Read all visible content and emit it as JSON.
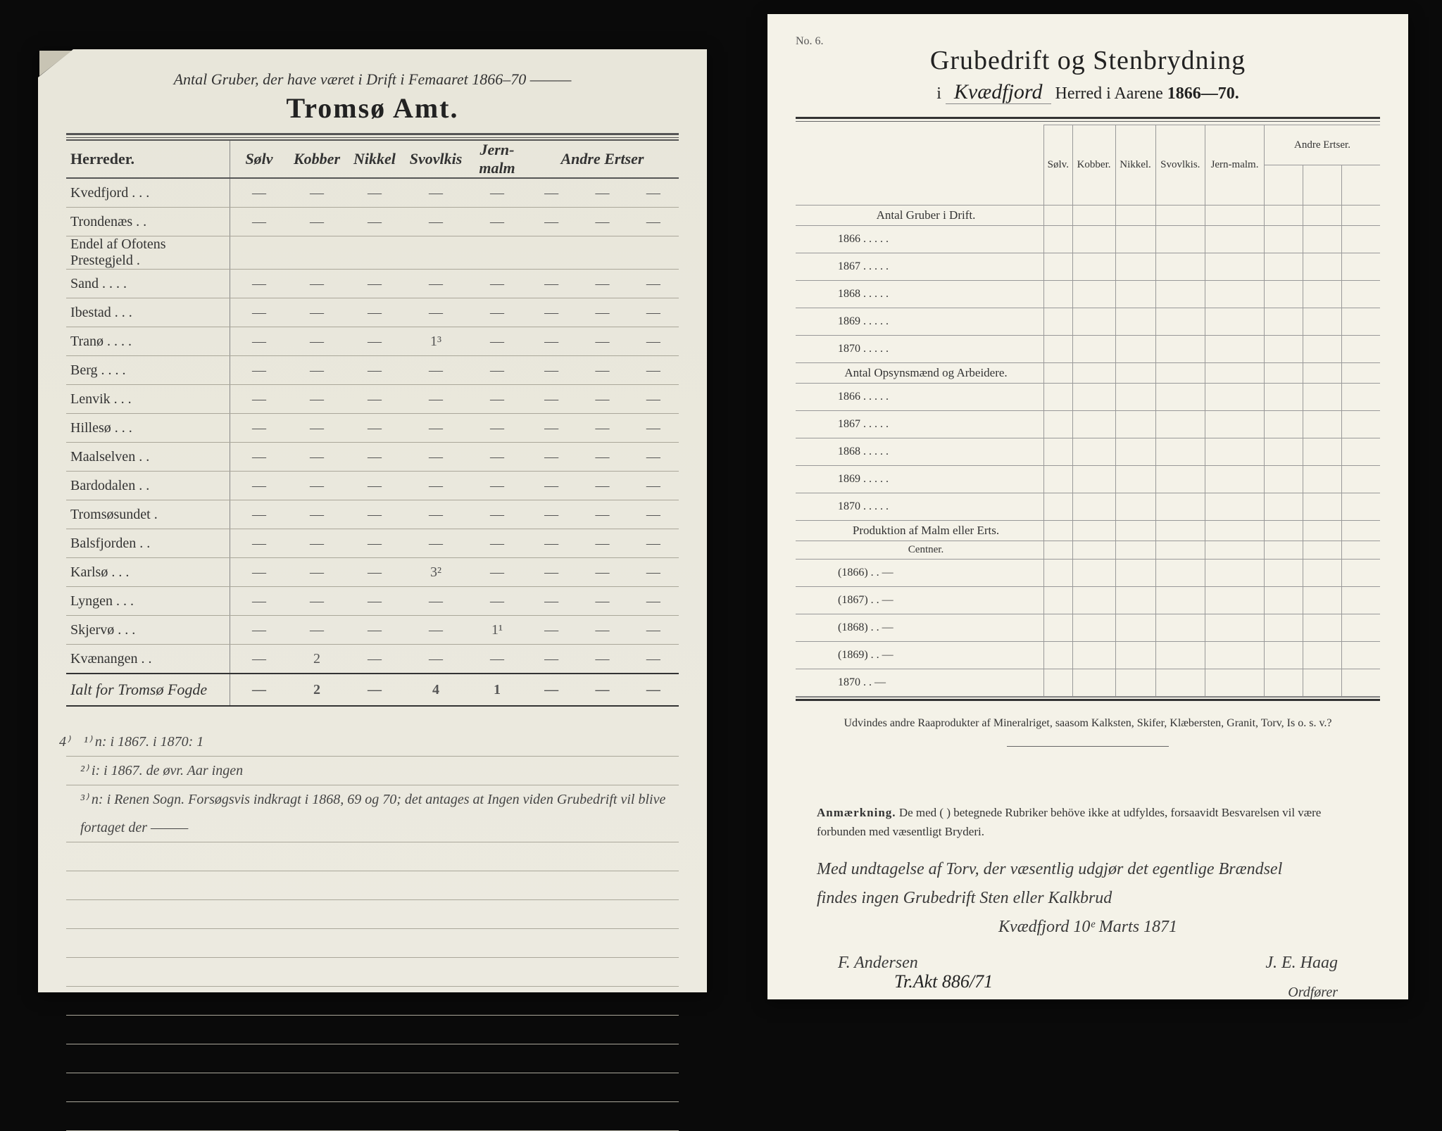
{
  "left": {
    "handwritten_header": "Antal Gruber, der have været i Drift i Femaaret 1866–70 ———",
    "title": "Tromsø Amt.",
    "col_header_main": "Herreder.",
    "col_headers_hw": [
      "Sølv",
      "Kobber",
      "Nikkel",
      "Svovlkis",
      "Jern-malm",
      "Andre Ertser",
      "",
      ""
    ],
    "rows": [
      {
        "name": "Kvedfjord . . .",
        "cells": [
          "—",
          "—",
          "—",
          "—",
          "—",
          "—",
          "—",
          "—"
        ]
      },
      {
        "name": "Trondenæs . .",
        "cells": [
          "—",
          "—",
          "—",
          "—",
          "—",
          "—",
          "—",
          "—"
        ]
      },
      {
        "name": "Endel af Ofotens Prestegjeld .",
        "cells": [
          "",
          "",
          "",
          "",
          "",
          "",
          "",
          ""
        ]
      },
      {
        "name": "Sand . . . .",
        "cells": [
          "—",
          "—",
          "—",
          "—",
          "—",
          "—",
          "—",
          "—"
        ]
      },
      {
        "name": "Ibestad . . .",
        "cells": [
          "—",
          "—",
          "—",
          "—",
          "—",
          "—",
          "—",
          "—"
        ]
      },
      {
        "name": "Tranø . . . .",
        "cells": [
          "—",
          "—",
          "—",
          "1³",
          "—",
          "—",
          "—",
          "—"
        ]
      },
      {
        "name": "Berg . . . .",
        "cells": [
          "—",
          "—",
          "—",
          "—",
          "—",
          "—",
          "—",
          "—"
        ]
      },
      {
        "name": "Lenvik . . .",
        "cells": [
          "—",
          "—",
          "—",
          "—",
          "—",
          "—",
          "—",
          "—"
        ]
      },
      {
        "name": "Hillesø . . .",
        "cells": [
          "—",
          "—",
          "—",
          "—",
          "—",
          "—",
          "—",
          "—"
        ]
      },
      {
        "name": "Maalselven . .",
        "cells": [
          "—",
          "—",
          "—",
          "—",
          "—",
          "—",
          "—",
          "—"
        ]
      },
      {
        "name": "Bardodalen . .",
        "cells": [
          "—",
          "—",
          "—",
          "—",
          "—",
          "—",
          "—",
          "—"
        ]
      },
      {
        "name": "Tromsøsundet .",
        "cells": [
          "—",
          "—",
          "—",
          "—",
          "—",
          "—",
          "—",
          "—"
        ]
      },
      {
        "name": "Balsfjorden . .",
        "cells": [
          "—",
          "—",
          "—",
          "—",
          "—",
          "—",
          "—",
          "—"
        ]
      },
      {
        "name": "Karlsø . . .",
        "cells": [
          "—",
          "—",
          "—",
          "3²",
          "—",
          "—",
          "—",
          "—"
        ]
      },
      {
        "name": "Lyngen . . .",
        "cells": [
          "—",
          "—",
          "—",
          "—",
          "—",
          "—",
          "—",
          "—"
        ]
      },
      {
        "name": "Skjervø . . .",
        "cells": [
          "—",
          "—",
          "—",
          "—",
          "1¹",
          "—",
          "—",
          "—"
        ]
      },
      {
        "name": "Kvænangen . .",
        "cells": [
          "—",
          "2",
          "—",
          "—",
          "—",
          "—",
          "—",
          "—"
        ]
      }
    ],
    "sum_row": {
      "name": "Ialt for Tromsø Fogde",
      "cells": [
        "—",
        "2",
        "—",
        "4",
        "1",
        "—",
        "—",
        "—"
      ]
    },
    "notes": [
      "¹⁾ n: i 1867.  i 1870: 1",
      "²⁾ i: i 1867.  de øvr. Aar ingen",
      "³⁾ n: i Renen Sogn. Forsøgsvis indkragt i 1868, 69 og 70; det antages at Ingen viden Grubedrift vil blive fortaget der ———"
    ],
    "footnote_sup": "4⁾",
    "colors": {
      "paper": "#eceae0",
      "rule": "#9a9688",
      "ink": "#333333"
    }
  },
  "right": {
    "form_no": "No. 6.",
    "title": "Grubedrift og Stenbrydning",
    "subtitle_prefix": "i",
    "subtitle_hw": "Kvædfjord",
    "subtitle_rest": "Herred i Aarene",
    "subtitle_years": "1866—70.",
    "columns": [
      "Sølv.",
      "Kobber.",
      "Nikkel.",
      "Svovlkis.",
      "Jern-malm.",
      "Andre Ertser."
    ],
    "sections": [
      {
        "heading": "Antal Gruber i Drift.",
        "rows": [
          "1866 . . . . .",
          "1867 . . . . .",
          "1868 . . . . .",
          "1869 . . . . .",
          "1870 . . . . ."
        ]
      },
      {
        "heading": "Antal Opsynsmænd og Arbeidere.",
        "rows": [
          "1866 . . . . .",
          "1867 . . . . .",
          "1868 . . . . .",
          "1869 . . . . .",
          "1870 . . . . ."
        ]
      },
      {
        "heading": "Produktion af Malm eller Erts.",
        "subheading": "Centner.",
        "rows": [
          "(1866) . .   —",
          "(1867) . .   —",
          "(1868) . .   —",
          "(1869) . .   —",
          "1870 . .   —"
        ]
      }
    ],
    "footnote": "Udvindes andre Raaprodukter af Mineralriget, saasom Kalksten, Skifer, Klæbersten, Granit, Torv, Is o. s. v.?",
    "anm_label": "Anmærkning.",
    "anm_text": "De med (  ) betegnede Rubriker behöve ikke at udfyldes, forsaavidt Besvarelsen vil være forbunden med væsentligt Bryderi.",
    "handwriting_lines": [
      "Med undtagelse af Torv, der væsentlig udgjør det egentlige Brændsel",
      "findes ingen Grubedrift Sten eller Kalkbrud",
      "Kvædfjord 10ᵉ Marts 1871"
    ],
    "sig_left": "F. Andersen",
    "sig_right_top": "J. E. Haag",
    "sig_right_bottom": "Ordfører",
    "bottom_ref": "Tr.Akt 886/71",
    "colors": {
      "paper": "#f4f2e8",
      "ink": "#222222",
      "rule": "#666666"
    }
  }
}
